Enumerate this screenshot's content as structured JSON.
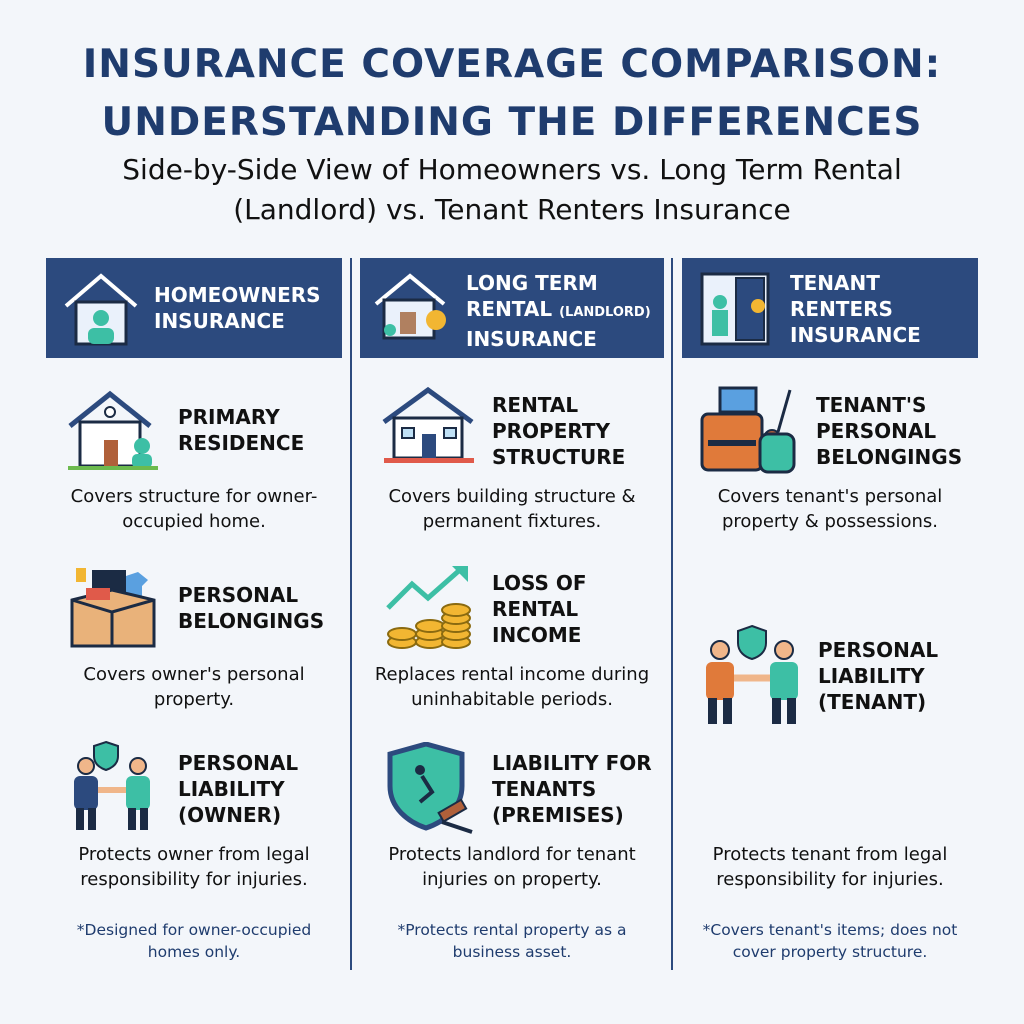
{
  "title": {
    "lines": [
      "INSURANCE COVERAGE COMPARISON:",
      "UNDERSTANDING THE DIFFERENCES"
    ]
  },
  "subtitle": {
    "lines": [
      "Side-by-Side View of Homeowners vs. Long Term Rental",
      "(Landlord) vs. Tenant Renters Insurance"
    ]
  },
  "columns": [
    {
      "header": [
        "HOMEOWNERS",
        "INSURANCE"
      ],
      "items": [
        {
          "heading": "PRIMARY RESIDENCE",
          "description": "Covers structure for owner-occupied home."
        },
        {
          "heading": "PERSONAL BELONGINGS",
          "description": "Covers owner's personal property."
        },
        {
          "heading": "PERSONAL LIABILITY (OWNER)",
          "description": "Protects owner from legal responsibility for injuries."
        }
      ],
      "footnote": "*Designed for owner-occupied homes only."
    },
    {
      "header": [
        "LONG TERM",
        "RENTAL",
        "(LANDLORD)",
        "INSURANCE"
      ],
      "items": [
        {
          "heading": "RENTAL PROPERTY STRUCTURE",
          "description": "Covers building structure & permanent fixtures."
        },
        {
          "heading": "LOSS OF RENTAL INCOME",
          "description": "Replaces rental income during uninhabitable periods."
        },
        {
          "heading": "LIABILITY FOR TENANTS (PREMISES)",
          "description": "Protects landlord for tenant injuries on property."
        }
      ],
      "footnote": "*Protects rental property as a business asset."
    },
    {
      "header": [
        "TENANT",
        "RENTERS",
        "INSURANCE"
      ],
      "items": [
        {
          "heading": "TENANT'S PERSONAL BELONGINGS",
          "description": "Covers tenant's personal property & possessions."
        },
        {
          "heading": "PERSONAL LIABILITY (TENANT)",
          "description": "Protects tenant from legal responsibility for injuries."
        }
      ],
      "footnote": "*Covers tenant's items; does not cover property structure."
    }
  ]
}
